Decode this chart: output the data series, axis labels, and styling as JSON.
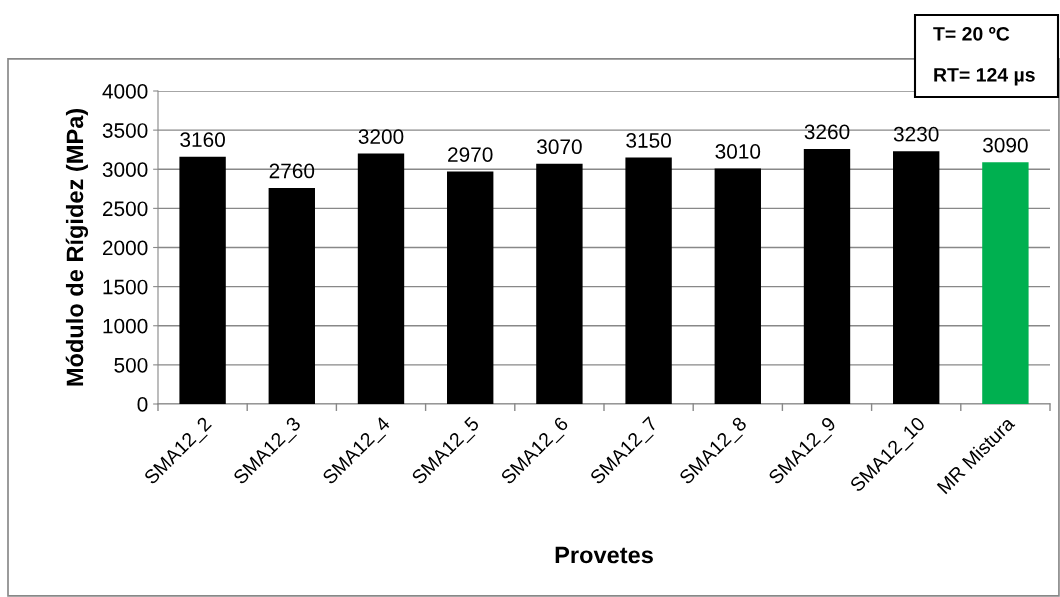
{
  "chart_data": {
    "type": "bar",
    "xlabel": "Provetes",
    "ylabel": "Módulo de Rígidez (MPa)",
    "annotations": [
      "T= 20 ºC",
      "RT= 124 µs"
    ],
    "categories": [
      "SMA12_2",
      "SMA12_3",
      "SMA12_4",
      "SMA12_5",
      "SMA12_6",
      "SMA12_7",
      "SMA12_8",
      "SMA12_9",
      "SMA12_10",
      "MR Mistura"
    ],
    "values": [
      3160,
      2760,
      3200,
      2970,
      3070,
      3150,
      3010,
      3260,
      3230,
      3090
    ],
    "colors": [
      "#000000",
      "#000000",
      "#000000",
      "#000000",
      "#000000",
      "#000000",
      "#000000",
      "#000000",
      "#000000",
      "#00b050"
    ],
    "ylim": [
      0,
      4000
    ],
    "yticks": [
      0,
      500,
      1000,
      1500,
      2000,
      2500,
      3000,
      3500,
      4000
    ],
    "grid": "y",
    "data_labels": true
  }
}
